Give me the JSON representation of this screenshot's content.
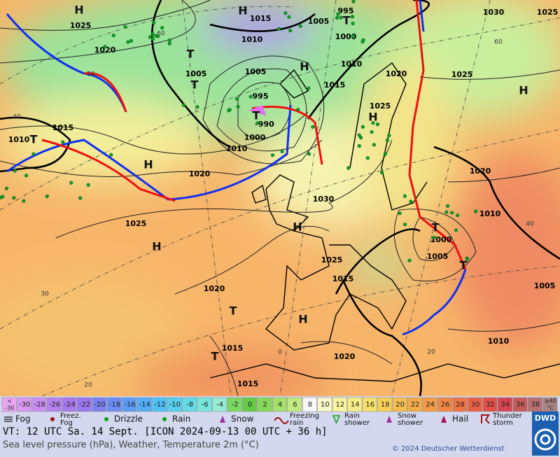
{
  "map": {
    "pressure_labels": [
      "1025",
      "1020",
      "1015",
      "995",
      "1005",
      "1000",
      "1030",
      "1025",
      "1010",
      "1005",
      "1005",
      "1010",
      "1020",
      "1025",
      "1015",
      "995",
      "-990",
      "1000",
      "1025",
      "1015",
      "1010",
      "1010",
      "1020",
      "1020",
      "1030",
      "1010",
      "1000",
      "1025",
      "1025",
      "1005",
      "1015",
      "1020",
      "1005",
      "1015",
      "1020",
      "1010",
      "1015"
    ],
    "high_symbol": "H",
    "low_symbol": "T",
    "grid_labels": [
      "60",
      "60",
      "50",
      "40",
      "40",
      "30",
      "20",
      "20",
      "0"
    ]
  },
  "legend": {
    "scale_low": [
      "<",
      "-30"
    ],
    "scale": [
      -30,
      -28,
      -26,
      -24,
      -22,
      -20,
      -18,
      -16,
      -14,
      -12,
      -10,
      -8,
      -6,
      -4,
      -2,
      0,
      2,
      4,
      6,
      8,
      10,
      12,
      14,
      16,
      18,
      20,
      22,
      24,
      26,
      28,
      30,
      32,
      34,
      36,
      38
    ],
    "scale_high": [
      "≥40",
      "°C"
    ],
    "weather": [
      {
        "lines": [
          "Fog"
        ]
      },
      {
        "lines": [
          "Freez.",
          "Fog"
        ]
      },
      {
        "lines": [
          "Drizzle"
        ]
      },
      {
        "lines": [
          "Rain"
        ]
      },
      {
        "lines": [
          "Snow"
        ]
      },
      {
        "lines": [
          "Freezing",
          "rain"
        ]
      },
      {
        "lines": [
          "Rain",
          "shower"
        ]
      },
      {
        "lines": [
          "Snow",
          "shower"
        ]
      },
      {
        "lines": [
          "Hail"
        ]
      },
      {
        "lines": [
          "Thunder",
          "storm"
        ]
      }
    ]
  },
  "footer": {
    "valid_time": "VT: 12 UTC Sa.  14 Sept. [ICON 2024-09-13  00 UTC + 36 h]",
    "description": "Sea level pressure (hPa), Weather, Temperature 2m (°C)",
    "copyright": "© 2024 Deutscher Wetterdienst",
    "logo": "DWD"
  }
}
